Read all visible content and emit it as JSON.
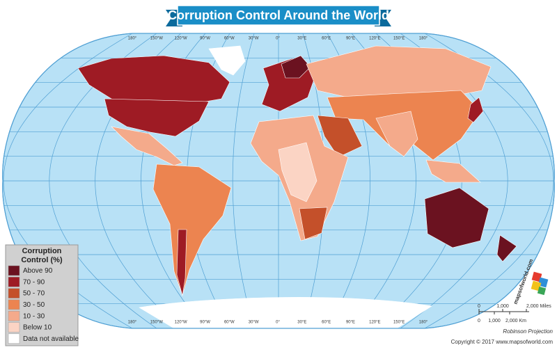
{
  "title": "Corruption Control Around the World",
  "map": {
    "longitudes": [
      "180°",
      "150°W",
      "120°W",
      "90°W",
      "60°W",
      "30°W",
      "0°",
      "30°E",
      "60°E",
      "90°E",
      "120°E",
      "150°E",
      "180°"
    ]
  },
  "legend": {
    "title_lines": [
      "Corruption",
      "Control (%)"
    ],
    "items": [
      {
        "label": "Above 90",
        "color": "#6b1220"
      },
      {
        "label": "70 - 90",
        "color": "#9e1b24"
      },
      {
        "label": "50 - 70",
        "color": "#c4502a"
      },
      {
        "label": "30 - 50",
        "color": "#ec8450"
      },
      {
        "label": "10 - 30",
        "color": "#f4aa8b"
      },
      {
        "label": "Below 10",
        "color": "#fbd4c4"
      },
      {
        "label": "Data not available",
        "color": "#ffffff"
      }
    ]
  },
  "scale": {
    "miles": [
      "0",
      "1,000",
      "2,000 Miles"
    ],
    "km": [
      "0",
      "1,000",
      "2,000 Km"
    ]
  },
  "projection": "Robinson Projection",
  "logo": "mapsofworld.com",
  "copyright": "Copyright © 2017 www.mapsofworld.com"
}
